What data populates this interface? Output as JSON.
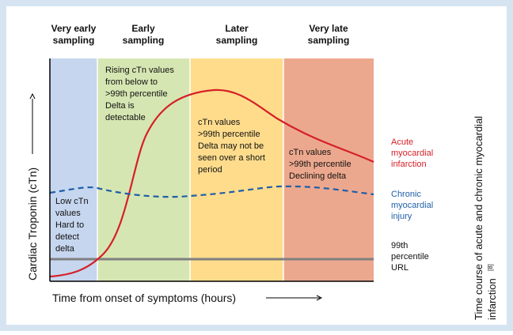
{
  "columns": [
    {
      "title": [
        "Very early",
        "sampling"
      ],
      "text": [
        "Low cTn",
        "values",
        "Hard to",
        "detect",
        "delta"
      ]
    },
    {
      "title": [
        "Early",
        "sampling"
      ],
      "text": [
        "Rising cTn values",
        "from below to",
        ">99th percentile",
        "Delta is",
        "detectable"
      ]
    },
    {
      "title": [
        "Later",
        "sampling"
      ],
      "text": [
        "cTn values",
        ">99th percentile",
        "Delta may not be",
        "seen over a short",
        "period"
      ]
    },
    {
      "title": [
        "Very late",
        "sampling"
      ],
      "text": [
        "cTn values",
        ">99th percentile",
        "Declining delta"
      ]
    }
  ],
  "y_axis_label": "Cardiac Troponin (cTn)",
  "x_axis_label": "Time from onset of symptoms (hours)",
  "legend": {
    "acute": [
      "Acute",
      "myocardial",
      "infarction"
    ],
    "chronic": [
      "Chronic",
      "myocardial",
      "injury"
    ],
    "url": [
      "99th",
      "percentile",
      "URL"
    ]
  },
  "side_title": [
    "Time course of acute and chronic myocardial",
    "infarction",
    "[8]"
  ]
}
